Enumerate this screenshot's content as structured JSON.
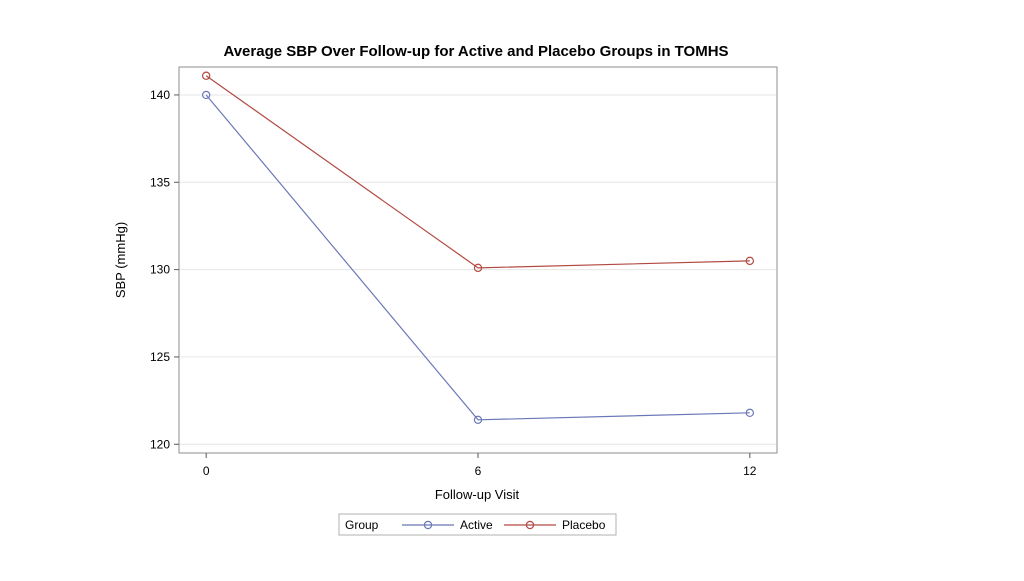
{
  "chart_data": {
    "type": "line",
    "title": "Average SBP Over Follow-up for Active and Placebo Groups in TOMHS",
    "xlabel": "Follow-up Visit",
    "ylabel": "SBP (mmHg)",
    "x": [
      0,
      6,
      12
    ],
    "x_ticks": [
      0,
      6,
      12
    ],
    "y_ticks": [
      120,
      125,
      130,
      135,
      140
    ],
    "xlim": [
      -0.6,
      12.6
    ],
    "ylim": [
      119.5,
      141.6
    ],
    "grid": "horizontal",
    "legend": {
      "title": "Group",
      "placement": "bottom-center"
    },
    "series": [
      {
        "name": "Active",
        "values": [
          140.0,
          121.4,
          121.8
        ],
        "color": "#6b78b8",
        "marker": "circle"
      },
      {
        "name": "Placebo",
        "values": [
          141.1,
          130.1,
          130.5
        ],
        "color": "#b24a43",
        "marker": "circle"
      }
    ]
  }
}
